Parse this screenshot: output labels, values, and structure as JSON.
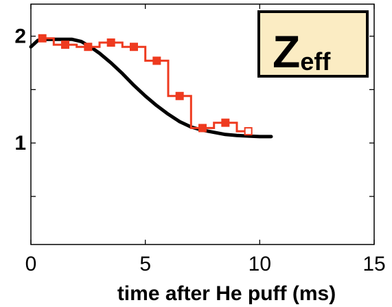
{
  "chart_data": {
    "type": "line",
    "title": "",
    "xlabel": "time after He puff (ms)",
    "ylabel": "",
    "xlim": [
      0,
      15
    ],
    "ylim": [
      0.05,
      2.3
    ],
    "x_ticks": [
      0,
      5,
      10,
      15
    ],
    "x_tick_labels": [
      "0",
      "5",
      "10",
      "15"
    ],
    "y_ticks": [
      1,
      2
    ],
    "y_tick_labels": [
      "1",
      "2"
    ],
    "y_minor_ticks": [
      0.5,
      1.5
    ],
    "grid": false,
    "annotation": {
      "main": "Z",
      "sub": "eff",
      "position": "top-right",
      "background": "#fbecc3"
    },
    "series": [
      {
        "style": "smooth-line",
        "color": "#000000",
        "x": [
          0,
          0.3,
          0.7,
          1.2,
          1.8,
          2.2,
          2.6,
          3.0,
          3.5,
          4.0,
          4.5,
          5.0,
          5.5,
          6.0,
          6.5,
          7.0,
          7.5,
          8.0,
          8.5,
          9.0,
          9.5,
          10.0,
          10.5
        ],
        "y": [
          1.9,
          1.96,
          1.97,
          1.97,
          1.97,
          1.95,
          1.9,
          1.84,
          1.75,
          1.65,
          1.54,
          1.44,
          1.35,
          1.27,
          1.2,
          1.15,
          1.12,
          1.1,
          1.08,
          1.07,
          1.065,
          1.06,
          1.06
        ]
      },
      {
        "style": "step-with-markers",
        "color": "#ee3a1f",
        "x": [
          0.5,
          1.5,
          2.5,
          3.5,
          4.5,
          5.5,
          6.5,
          7.5,
          8.5,
          9.5
        ],
        "y": [
          1.98,
          1.92,
          1.9,
          1.94,
          1.9,
          1.77,
          1.44,
          1.14,
          1.19,
          1.11
        ]
      }
    ]
  }
}
